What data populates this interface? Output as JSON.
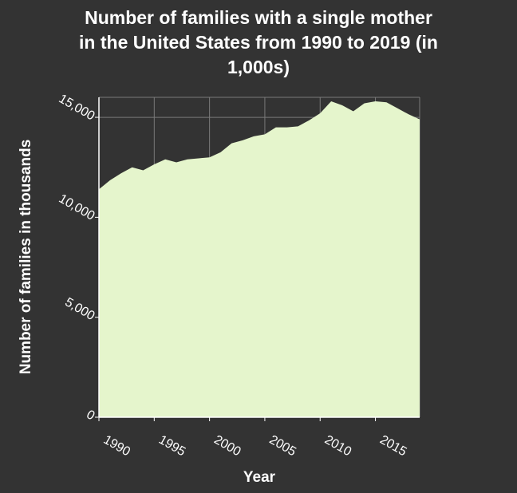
{
  "chart_data": {
    "type": "area",
    "title": "Number of families with a single mother in the United States from 1990 to 2019 (in 1,000s)",
    "title_lines": [
      "Number of families with a single mother",
      "in the United States from 1990 to 2019 (in",
      "1,000s)"
    ],
    "xlabel": "Year",
    "ylabel": "Number of families in thousands",
    "xlim": [
      1990,
      2019
    ],
    "ylim": [
      0,
      16000
    ],
    "x_ticks": [
      1990,
      1995,
      2000,
      2005,
      2010,
      2015
    ],
    "x_tick_labels": [
      "1990",
      "1995",
      "2000",
      "2005",
      "2010",
      "2015"
    ],
    "y_ticks": [
      0,
      5000,
      10000,
      15000
    ],
    "y_tick_labels": [
      "0",
      "5,000",
      "10,000",
      "15,000"
    ],
    "grid": true,
    "fill_color": "#e5f5cc",
    "plot_background": "#333333",
    "grid_color": "#7a7a7a",
    "text_color": "#ffffff",
    "series": [
      {
        "x": [
          1990,
          1991,
          1992,
          1993,
          1994,
          1995,
          1996,
          1997,
          1998,
          1999,
          2000,
          2001,
          2002,
          2003,
          2004,
          2005,
          2006,
          2007,
          2008,
          2009,
          2010,
          2011,
          2012,
          2013,
          2014,
          2015,
          2016,
          2017,
          2018,
          2019
        ],
        "values": [
          11400,
          11850,
          12200,
          12500,
          12350,
          12650,
          12900,
          12750,
          12900,
          12950,
          13000,
          13250,
          13700,
          13850,
          14050,
          14150,
          14500,
          14500,
          14550,
          14850,
          15200,
          15800,
          15600,
          15300,
          15700,
          15800,
          15750,
          15450,
          15150,
          14900
        ]
      }
    ]
  }
}
